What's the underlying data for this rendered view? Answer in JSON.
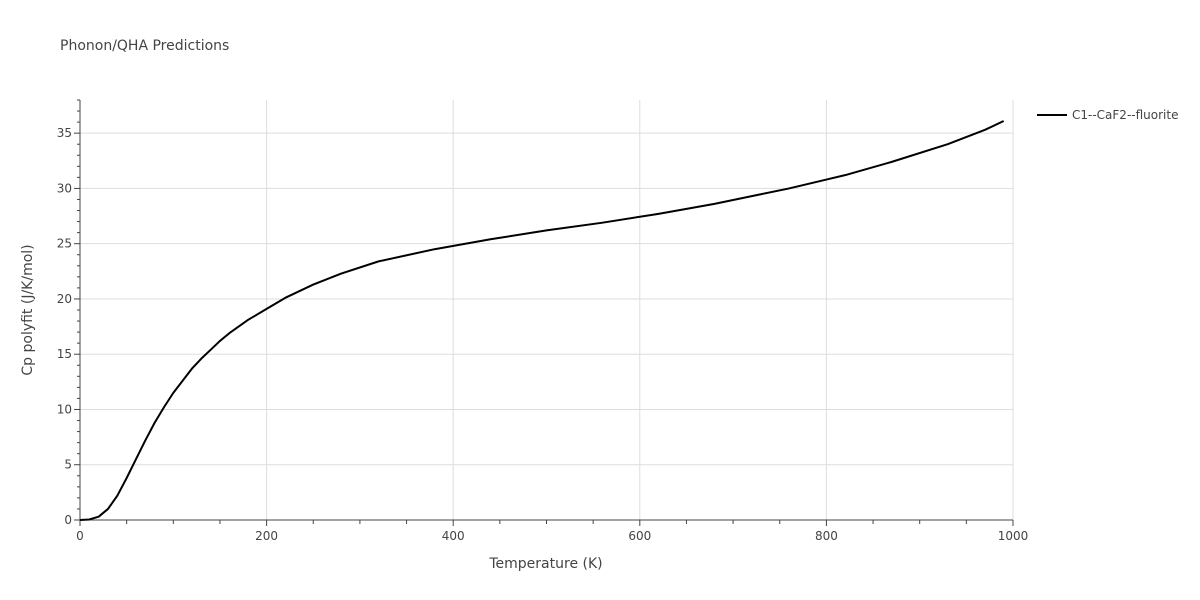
{
  "chart_data": {
    "type": "line",
    "title": "Phonon/QHA Predictions",
    "xlabel": "Temperature (K)",
    "ylabel": "Cp polyfit (J/K/mol)",
    "xlim": [
      0,
      1000
    ],
    "ylim": [
      0,
      38
    ],
    "x_ticks": [
      0,
      200,
      400,
      600,
      800,
      1000
    ],
    "y_ticks": [
      0,
      5,
      10,
      15,
      20,
      25,
      30,
      35
    ],
    "grid": true,
    "legend_position": "right",
    "series": [
      {
        "name": "C1--CaF2--fluorite",
        "color": "#000000",
        "x": [
          0,
          10,
          20,
          30,
          40,
          50,
          60,
          70,
          80,
          90,
          100,
          110,
          120,
          130,
          140,
          150,
          160,
          180,
          200,
          220,
          250,
          280,
          320,
          380,
          440,
          500,
          560,
          620,
          680,
          720,
          760,
          800,
          820,
          870,
          930,
          970,
          990
        ],
        "y": [
          0,
          0.05,
          0.3,
          1.0,
          2.2,
          3.8,
          5.5,
          7.2,
          8.8,
          10.2,
          11.5,
          12.6,
          13.7,
          14.6,
          15.4,
          16.2,
          16.9,
          18.1,
          19.1,
          20.1,
          21.3,
          22.3,
          23.4,
          24.5,
          25.4,
          26.2,
          26.9,
          27.7,
          28.6,
          29.3,
          30.0,
          30.8,
          31.2,
          32.4,
          34.0,
          35.3,
          36.1
        ]
      }
    ]
  }
}
